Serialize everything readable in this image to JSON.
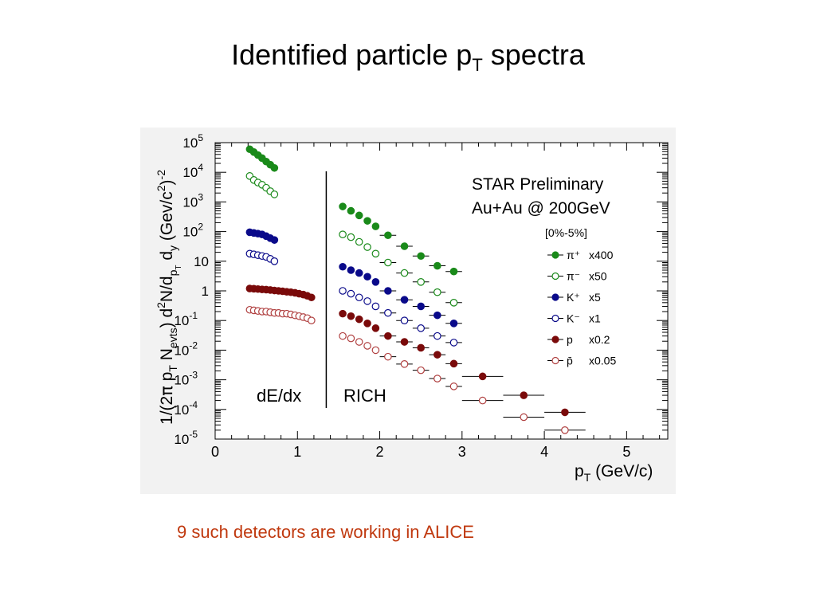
{
  "slide": {
    "title_main": "Identified particle p",
    "title_sub": "T",
    "title_rest": " spectra",
    "footnote": "9 such detectors are working in ALICE",
    "footnote_color": "#c0390f"
  },
  "chart_data": {
    "type": "scatter",
    "log_y": true,
    "xlim": [
      0,
      5.5
    ],
    "ylim_exp": [
      -5,
      5
    ],
    "x_ticks": [
      "0",
      "1",
      "2",
      "3",
      "4",
      "5"
    ],
    "y_ticks": [
      {
        "base": "10",
        "exp": "5"
      },
      {
        "base": "10",
        "exp": "4"
      },
      {
        "base": "10",
        "exp": "3"
      },
      {
        "base": "10",
        "exp": "2"
      },
      {
        "base": "10",
        "exp": ""
      },
      {
        "base": "1",
        "exp": ""
      },
      {
        "base": "10",
        "exp": "-1"
      },
      {
        "base": "10",
        "exp": "-2"
      },
      {
        "base": "10",
        "exp": "-3"
      },
      {
        "base": "10",
        "exp": "-4"
      },
      {
        "base": "10",
        "exp": "-5"
      }
    ],
    "xlabel": "p",
    "xlabel_sub": "T",
    "xlabel_unit": " (GeV/c)",
    "ylabel": "1/(2π p_T N_evts) d²N/dp_T dy (Gev/c²)⁻²",
    "annotation_line1": "STAR Preliminary",
    "annotation_line2": "Au+Au @ 200GeV",
    "centrality": "[0%-5%]",
    "region_left": "dE/dx",
    "region_right": "RICH",
    "region_divider_x": 1.35,
    "grid": false,
    "series": [
      {
        "name": "π⁺",
        "scale": "x400",
        "color": "#1a8a1a",
        "filled": true,
        "points": [
          [
            0.42,
            60000
          ],
          [
            0.47,
            48000
          ],
          [
            0.52,
            38000
          ],
          [
            0.57,
            30000
          ],
          [
            0.62,
            23000
          ],
          [
            0.67,
            18000
          ],
          [
            0.72,
            14000
          ],
          [
            1.55,
            700
          ],
          [
            1.65,
            500
          ],
          [
            1.75,
            350
          ],
          [
            1.85,
            230
          ],
          [
            1.95,
            150
          ],
          [
            2.1,
            75
          ],
          [
            2.3,
            32
          ],
          [
            2.5,
            15
          ],
          [
            2.7,
            7
          ],
          [
            2.9,
            4.5
          ]
        ]
      },
      {
        "name": "π⁻",
        "scale": "x50",
        "color": "#1a8a1a",
        "filled": false,
        "points": [
          [
            0.42,
            7500
          ],
          [
            0.47,
            5500
          ],
          [
            0.52,
            4500
          ],
          [
            0.57,
            3800
          ],
          [
            0.62,
            3000
          ],
          [
            0.67,
            2300
          ],
          [
            0.72,
            1800
          ],
          [
            1.55,
            80
          ],
          [
            1.65,
            65
          ],
          [
            1.75,
            45
          ],
          [
            1.85,
            30
          ],
          [
            1.95,
            18
          ],
          [
            2.1,
            9
          ],
          [
            2.3,
            4
          ],
          [
            2.5,
            2
          ],
          [
            2.7,
            0.9
          ],
          [
            2.9,
            0.4
          ]
        ]
      },
      {
        "name": "K⁺",
        "scale": "x5",
        "color": "#0a0a8a",
        "filled": true,
        "points": [
          [
            0.42,
            95
          ],
          [
            0.47,
            90
          ],
          [
            0.52,
            85
          ],
          [
            0.57,
            80
          ],
          [
            0.62,
            70
          ],
          [
            0.67,
            60
          ],
          [
            0.72,
            52
          ],
          [
            1.55,
            6.5
          ],
          [
            1.65,
            5
          ],
          [
            1.75,
            4
          ],
          [
            1.85,
            3
          ],
          [
            1.95,
            2
          ],
          [
            2.1,
            1
          ],
          [
            2.3,
            0.5
          ],
          [
            2.5,
            0.3
          ],
          [
            2.7,
            0.15
          ],
          [
            2.9,
            0.08
          ]
        ]
      },
      {
        "name": "K⁻",
        "scale": "x1",
        "color": "#0a0a8a",
        "filled": false,
        "points": [
          [
            0.42,
            18
          ],
          [
            0.47,
            17
          ],
          [
            0.52,
            16
          ],
          [
            0.57,
            15
          ],
          [
            0.62,
            14
          ],
          [
            0.67,
            12
          ],
          [
            0.72,
            10
          ],
          [
            1.55,
            1
          ],
          [
            1.65,
            0.8
          ],
          [
            1.75,
            0.6
          ],
          [
            1.85,
            0.45
          ],
          [
            1.95,
            0.3
          ],
          [
            2.1,
            0.18
          ],
          [
            2.3,
            0.1
          ],
          [
            2.5,
            0.055
          ],
          [
            2.7,
            0.03
          ],
          [
            2.9,
            0.018
          ]
        ]
      },
      {
        "name": "p",
        "scale": "x0.2",
        "color": "#7a0a0a",
        "filled": true,
        "points": [
          [
            0.42,
            1.2
          ],
          [
            0.47,
            1.18
          ],
          [
            0.52,
            1.15
          ],
          [
            0.57,
            1.12
          ],
          [
            0.62,
            1.1
          ],
          [
            0.67,
            1.07
          ],
          [
            0.72,
            1.03
          ],
          [
            0.77,
            1.0
          ],
          [
            0.82,
            0.97
          ],
          [
            0.87,
            0.93
          ],
          [
            0.92,
            0.9
          ],
          [
            0.97,
            0.86
          ],
          [
            1.02,
            0.8
          ],
          [
            1.07,
            0.75
          ],
          [
            1.12,
            0.68
          ],
          [
            1.17,
            0.6
          ],
          [
            1.55,
            0.17
          ],
          [
            1.65,
            0.14
          ],
          [
            1.75,
            0.11
          ],
          [
            1.85,
            0.08
          ],
          [
            1.95,
            0.055
          ],
          [
            2.1,
            0.03
          ],
          [
            2.3,
            0.019
          ],
          [
            2.5,
            0.012
          ],
          [
            2.7,
            0.007
          ],
          [
            2.9,
            0.0035
          ],
          [
            3.25,
            0.0013
          ],
          [
            3.75,
            0.0003
          ],
          [
            4.25,
            8e-05
          ]
        ]
      },
      {
        "name": "p̄",
        "scale": "x0.05",
        "color": "#b04040",
        "filled": false,
        "points": [
          [
            0.42,
            0.23
          ],
          [
            0.47,
            0.22
          ],
          [
            0.52,
            0.21
          ],
          [
            0.57,
            0.2
          ],
          [
            0.62,
            0.2
          ],
          [
            0.67,
            0.19
          ],
          [
            0.72,
            0.18
          ],
          [
            0.77,
            0.18
          ],
          [
            0.82,
            0.17
          ],
          [
            0.87,
            0.17
          ],
          [
            0.92,
            0.16
          ],
          [
            0.97,
            0.15
          ],
          [
            1.02,
            0.14
          ],
          [
            1.07,
            0.13
          ],
          [
            1.12,
            0.12
          ],
          [
            1.17,
            0.1
          ],
          [
            1.55,
            0.03
          ],
          [
            1.65,
            0.025
          ],
          [
            1.75,
            0.019
          ],
          [
            1.85,
            0.014
          ],
          [
            1.95,
            0.01
          ],
          [
            2.1,
            0.006
          ],
          [
            2.3,
            0.0034
          ],
          [
            2.5,
            0.0021
          ],
          [
            2.7,
            0.0011
          ],
          [
            2.9,
            0.0006
          ],
          [
            3.25,
            0.0002
          ],
          [
            3.75,
            5.5e-05
          ],
          [
            4.25,
            2e-05
          ]
        ]
      }
    ]
  }
}
